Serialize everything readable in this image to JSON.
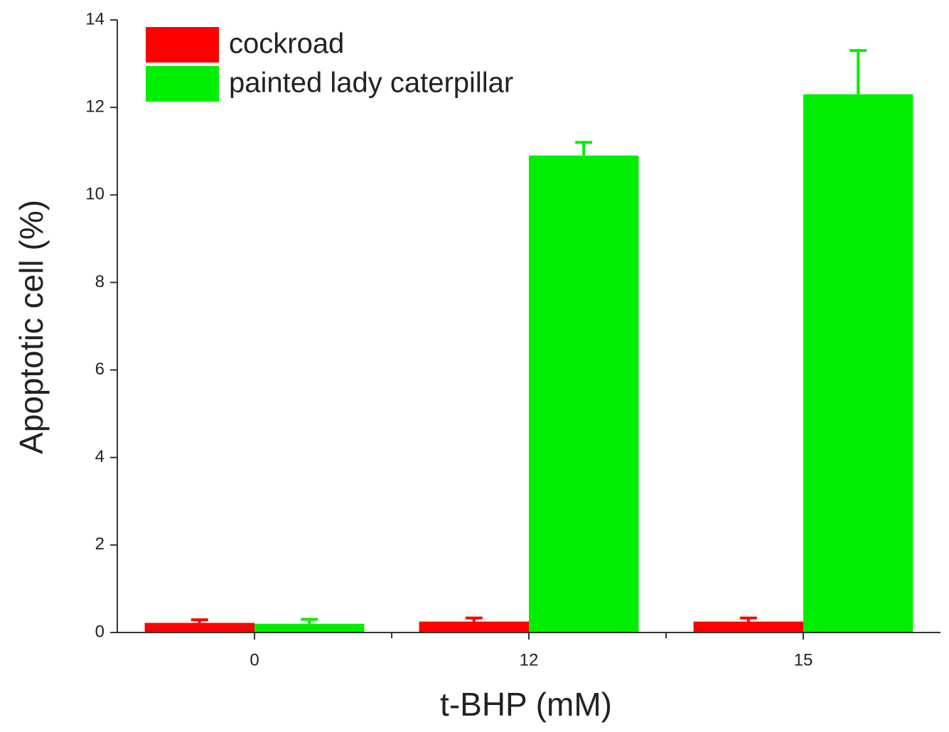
{
  "chart_data": {
    "type": "bar",
    "x_label": "t-BHP (mM)",
    "y_label": "Apoptotic cell (%)",
    "categories": [
      "0",
      "12",
      "15"
    ],
    "series": [
      {
        "name": "cockroad",
        "color": "#ff0000",
        "values": [
          0.22,
          0.25,
          0.25
        ],
        "errors": [
          0.07,
          0.08,
          0.08
        ]
      },
      {
        "name": "painted lady caterpillar",
        "color": "#00ee00",
        "values": [
          0.2,
          10.9,
          12.3
        ],
        "errors": [
          0.1,
          0.3,
          1.0
        ]
      }
    ],
    "ylim": [
      0,
      14
    ],
    "yticks": [
      0,
      2,
      4,
      6,
      8,
      10,
      12,
      14
    ],
    "legend": "upper left"
  }
}
